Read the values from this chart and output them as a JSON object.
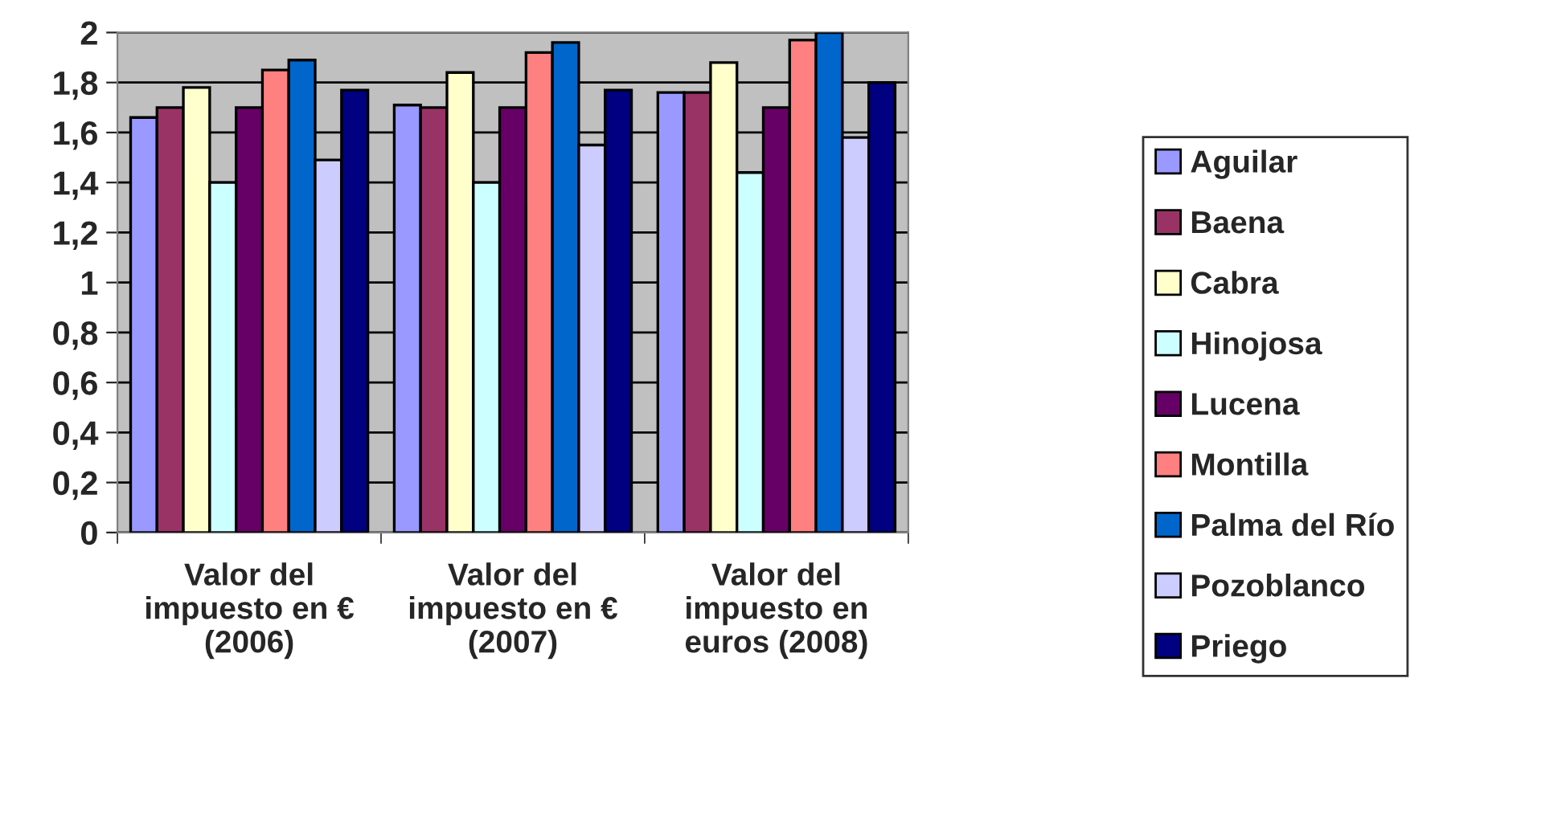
{
  "chart_data": {
    "type": "bar",
    "categories": [
      "Valor del impuesto en € (2006)",
      "Valor del impuesto en € (2007)",
      "Valor del impuesto en euros (2008)"
    ],
    "series": [
      {
        "name": "Aguilar",
        "color": "#9999ff",
        "values": [
          1.66,
          1.71,
          1.76
        ]
      },
      {
        "name": "Baena",
        "color": "#993366",
        "values": [
          1.7,
          1.7,
          1.76
        ]
      },
      {
        "name": "Cabra",
        "color": "#ffffcc",
        "values": [
          1.78,
          1.84,
          1.88
        ]
      },
      {
        "name": "Hinojosa",
        "color": "#ccffff",
        "values": [
          1.4,
          1.4,
          1.44
        ]
      },
      {
        "name": "Lucena",
        "color": "#660066",
        "values": [
          1.7,
          1.7,
          1.7
        ]
      },
      {
        "name": "Montilla",
        "color": "#ff8080",
        "values": [
          1.85,
          1.92,
          1.97
        ]
      },
      {
        "name": "Palma del Río",
        "color": "#0066cc",
        "values": [
          1.89,
          1.96,
          2.0
        ]
      },
      {
        "name": "Pozoblanco",
        "color": "#ccccff",
        "values": [
          1.49,
          1.55,
          1.58
        ]
      },
      {
        "name": "Priego",
        "color": "#000080",
        "values": [
          1.77,
          1.77,
          1.8
        ]
      }
    ],
    "ylim": [
      0,
      2
    ],
    "yticks": [
      0,
      {
        "value": 0.2,
        "label": "0,2"
      },
      {
        "value": 0.4,
        "label": "0,4"
      },
      {
        "value": 0.6,
        "label": "0,6"
      },
      {
        "value": 0.8,
        "label": "0,8"
      },
      1,
      {
        "value": 1.2,
        "label": "1,2"
      },
      {
        "value": 1.4,
        "label": "1,4"
      },
      {
        "value": 1.6,
        "label": "1,6"
      },
      {
        "value": 1.8,
        "label": "1,8"
      },
      2
    ],
    "grid": "y",
    "legend": "right"
  }
}
